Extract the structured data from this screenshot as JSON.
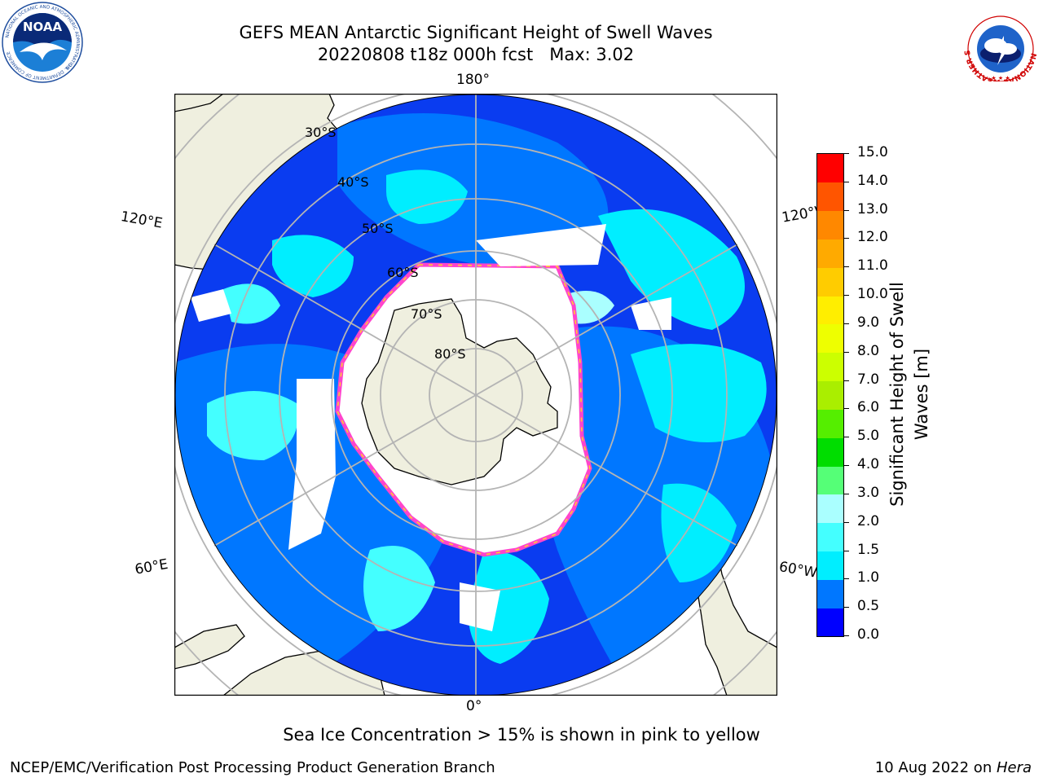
{
  "header": {
    "title_line1": "GEFS MEAN Antarctic Significant Height of Swell Waves",
    "title_line2": "20220808 t18z 000h fcst   Max: 3.02"
  },
  "logos": {
    "noaa_text": "NOAA",
    "noaa_ring_text": "NATIONAL OCEANIC AND ATMOSPHERIC ADMINISTRATION",
    "noaa_bottom_text": "U.S. DEPARTMENT OF COMMERCE",
    "nws_ring_text": "NATIONAL WEATHER SERVICE"
  },
  "map": {
    "projection": "south-polar-stereographic",
    "lon_labels": {
      "top": "180°",
      "bottom": "0°",
      "upper_left": "120°E",
      "upper_right": "120°W",
      "lower_left": "60°E",
      "lower_right": "60°W"
    },
    "lat_labels": [
      "30°S",
      "40°S",
      "50°S",
      "60°S",
      "70°S",
      "80°S"
    ],
    "colors": {
      "land": "#efefdf",
      "coast": "#000000",
      "grid": "#b4b4b4",
      "sea_ice": "#ffffff",
      "ice_edge_pink": "#ff44cc",
      "ice_edge_yellow": "#ffcc33"
    }
  },
  "colorbar": {
    "label": "Significant Height of Swell Waves [m]",
    "ticks": [
      "0.0",
      "0.5",
      "1.0",
      "1.5",
      "2.0",
      "3.0",
      "4.0",
      "5.0",
      "6.0",
      "7.0",
      "8.0",
      "9.0",
      "10.0",
      "11.0",
      "12.0",
      "13.0",
      "14.0",
      "15.0"
    ],
    "colors": [
      "#0000ff",
      "#0077ff",
      "#00eeff",
      "#44ffff",
      "#aaffff",
      "#55ff77",
      "#00dd00",
      "#55ee00",
      "#aaee00",
      "#ccff00",
      "#eeff00",
      "#ffee00",
      "#ffcc00",
      "#ffaa00",
      "#ff8800",
      "#ff5500",
      "#ff0000"
    ]
  },
  "note": "Sea Ice Concentration > 15% is shown in pink to yellow",
  "footer": {
    "left": "NCEP/EMC/Verification Post Processing Product Generation Branch",
    "right_prefix": "10 Aug 2022 on ",
    "right_host": "Hera"
  }
}
